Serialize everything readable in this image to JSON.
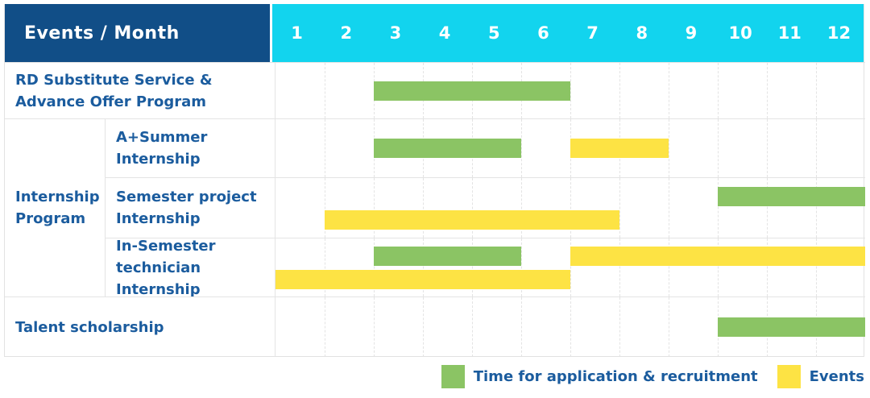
{
  "table": {
    "header": {
      "title": "Events / Month",
      "months": [
        "1",
        "2",
        "3",
        "4",
        "5",
        "6",
        "7",
        "8",
        "9",
        "10",
        "11",
        "12"
      ]
    }
  },
  "colors": {
    "header_bg": "#114e87",
    "months_bg": "#12d4ee",
    "header_text": "#ffffff",
    "label_text": "#1b5c9e",
    "application_green": "#8bc464",
    "events_yellow": "#fde344",
    "grid_line": "#e3e3e3"
  },
  "legend": {
    "items": [
      {
        "key": "application",
        "label": "Time for application & recruitment",
        "color": "#8bc464"
      },
      {
        "key": "events",
        "label": "Events",
        "color": "#fde344"
      }
    ]
  },
  "chart_data": {
    "type": "gantt",
    "title": "Events / Month",
    "x": {
      "unit": "month",
      "ticks": [
        1,
        2,
        3,
        4,
        5,
        6,
        7,
        8,
        9,
        10,
        11,
        12
      ],
      "range": [
        1,
        12
      ]
    },
    "series_legend": [
      {
        "name": "Time for application & recruitment",
        "color": "#8bc464"
      },
      {
        "name": "Events",
        "color": "#fde344"
      }
    ],
    "rows": [
      {
        "group": "",
        "label": "RD Substitute Service & Advance Offer Program",
        "lines": [
          [
            {
              "series": "application",
              "start_month": 3,
              "end_month": 6
            }
          ]
        ]
      },
      {
        "group": "Internship Program",
        "label": "A+Summer Internship",
        "lines": [
          [
            {
              "series": "application",
              "start_month": 3,
              "end_month": 5
            },
            {
              "series": "events",
              "start_month": 7,
              "end_month": 8
            }
          ]
        ]
      },
      {
        "group": "Internship Program",
        "label": "Semester project Internship",
        "lines": [
          [
            {
              "series": "application",
              "start_month": 10,
              "end_month": 12
            }
          ],
          [
            {
              "series": "events",
              "start_month": 2,
              "end_month": 7
            }
          ]
        ]
      },
      {
        "group": "Internship Program",
        "label": "In-Semester technician Internship",
        "lines": [
          [
            {
              "series": "application",
              "start_month": 3,
              "end_month": 5
            },
            {
              "series": "events",
              "start_month": 7,
              "end_month": 12
            }
          ],
          [
            {
              "series": "events",
              "start_month": 1,
              "end_month": 6
            }
          ]
        ]
      },
      {
        "group": "",
        "label": "Talent scholarship",
        "lines": [
          [
            {
              "series": "application",
              "start_month": 10,
              "end_month": 12
            }
          ]
        ]
      }
    ]
  }
}
